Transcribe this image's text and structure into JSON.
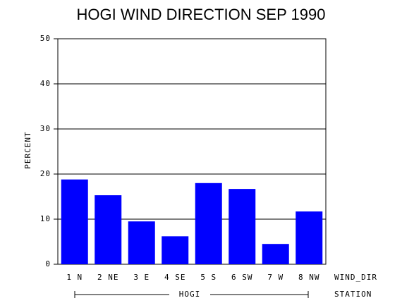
{
  "chart_data": {
    "type": "bar",
    "title": "HOGI WIND DIRECTION SEP 1990",
    "y_label": "PERCENT",
    "x_label": "WIND_DIR",
    "group_axis_label": "STATION",
    "group_label": "HOGI",
    "categories": [
      "1 N",
      "2 NE",
      "3 E",
      "4 SE",
      "5 S",
      "6 SW",
      "7 W",
      "8 NW"
    ],
    "values": [
      18.8,
      15.3,
      9.5,
      6.2,
      18.0,
      16.7,
      4.5,
      11.7
    ],
    "color": "#0000ff",
    "ylim": [
      0,
      50
    ],
    "yticks": [
      0,
      10,
      20,
      30,
      40,
      50
    ],
    "grid": true
  }
}
